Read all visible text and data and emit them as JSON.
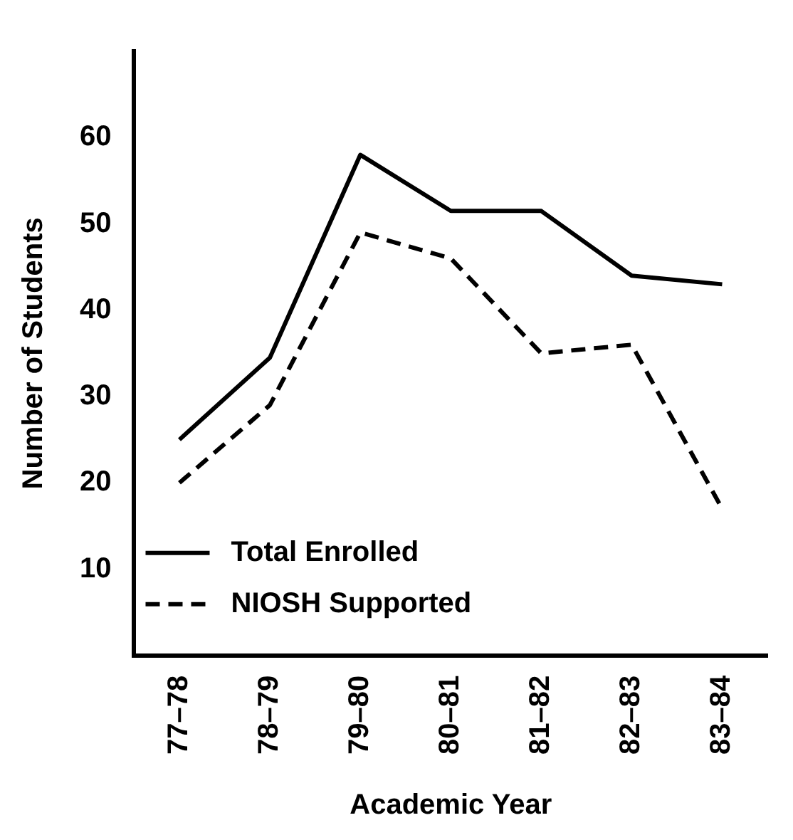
{
  "chart_data": {
    "type": "line",
    "xlabel": "Academic Year",
    "ylabel": "Number of Students",
    "categories": [
      "77–78",
      "78–79",
      "79–80",
      "80–81",
      "81–82",
      "82–83",
      "83–84"
    ],
    "series": [
      {
        "name": "Total Enrolled",
        "color": "#000000",
        "line_style": "solid",
        "values": [
          25,
          34.5,
          58,
          51.5,
          51.5,
          44,
          43
        ]
      },
      {
        "name": "NIOSH Supported",
        "color": "#000000",
        "line_style": "dashed",
        "values": [
          20,
          29,
          49,
          46,
          35,
          36,
          17
        ]
      }
    ],
    "ylim": [
      0,
      70
    ],
    "yticks": [
      10,
      20,
      30,
      40,
      50,
      60
    ],
    "grid": false,
    "marker": "none",
    "legend": "bottom left"
  }
}
